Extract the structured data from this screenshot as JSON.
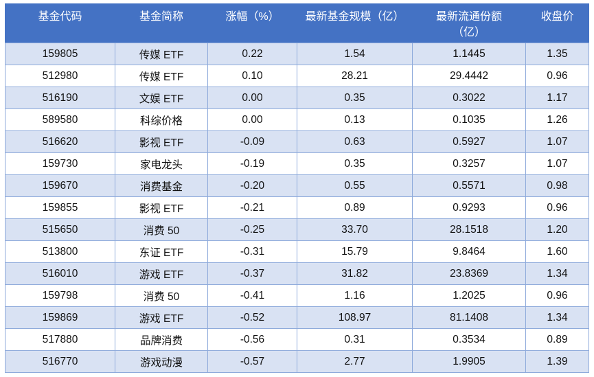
{
  "table": {
    "title": "fund-etf-table",
    "columns": [
      {
        "key": "code",
        "label_lines": [
          "基金代码"
        ]
      },
      {
        "key": "name",
        "label_lines": [
          "基金简称"
        ]
      },
      {
        "key": "change",
        "label_lines": [
          "涨幅（%）"
        ]
      },
      {
        "key": "scale",
        "label_lines": [
          "最新基金规模（亿）"
        ]
      },
      {
        "key": "shares",
        "label_lines": [
          "最新流通份额",
          "（亿）"
        ]
      },
      {
        "key": "close",
        "label_lines": [
          "收盘价"
        ]
      }
    ],
    "rows": [
      {
        "code": "159805",
        "name": "传媒 ETF",
        "change": "0.22",
        "scale": "1.54",
        "shares": "1.1445",
        "close": "1.35"
      },
      {
        "code": "512980",
        "name": "传媒 ETF",
        "change": "0.10",
        "scale": "28.21",
        "shares": "29.4442",
        "close": "0.96"
      },
      {
        "code": "516190",
        "name": "文娱 ETF",
        "change": "0.00",
        "scale": "0.35",
        "shares": "0.3022",
        "close": "1.17"
      },
      {
        "code": "589580",
        "name": "科综价格",
        "change": "0.00",
        "scale": "0.13",
        "shares": "0.1035",
        "close": "1.26"
      },
      {
        "code": "516620",
        "name": "影视 ETF",
        "change": "-0.09",
        "scale": "0.63",
        "shares": "0.5927",
        "close": "1.07"
      },
      {
        "code": "159730",
        "name": "家电龙头",
        "change": "-0.19",
        "scale": "0.35",
        "shares": "0.3257",
        "close": "1.07"
      },
      {
        "code": "159670",
        "name": "消费基金",
        "change": "-0.20",
        "scale": "0.55",
        "shares": "0.5571",
        "close": "0.98"
      },
      {
        "code": "159855",
        "name": "影视 ETF",
        "change": "-0.21",
        "scale": "0.89",
        "shares": "0.9293",
        "close": "0.96"
      },
      {
        "code": "515650",
        "name": "消费 50",
        "change": "-0.25",
        "scale": "33.70",
        "shares": "28.1518",
        "close": "1.20"
      },
      {
        "code": "513800",
        "name": "东证 ETF",
        "change": "-0.31",
        "scale": "15.79",
        "shares": "9.8464",
        "close": "1.60"
      },
      {
        "code": "516010",
        "name": "游戏 ETF",
        "change": "-0.37",
        "scale": "31.82",
        "shares": "23.8369",
        "close": "1.34"
      },
      {
        "code": "159798",
        "name": "消费 50",
        "change": "-0.41",
        "scale": "1.16",
        "shares": "1.2025",
        "close": "0.96"
      },
      {
        "code": "159869",
        "name": "游戏 ETF",
        "change": "-0.52",
        "scale": "108.97",
        "shares": "81.1408",
        "close": "1.34"
      },
      {
        "code": "517880",
        "name": "品牌消费",
        "change": "-0.56",
        "scale": "0.31",
        "shares": "0.3534",
        "close": "0.89"
      },
      {
        "code": "516770",
        "name": "游戏动漫",
        "change": "-0.57",
        "scale": "2.77",
        "shares": "1.9905",
        "close": "1.39"
      }
    ],
    "banding": "odd-rows-shaded"
  },
  "colors": {
    "header_bg": "#4472C4",
    "band_bg": "#D9E2F3",
    "border": "#8EAADB",
    "header_text": "#FFFFFF",
    "body_text": "#111111",
    "page_bg": "#FFFFFF"
  }
}
